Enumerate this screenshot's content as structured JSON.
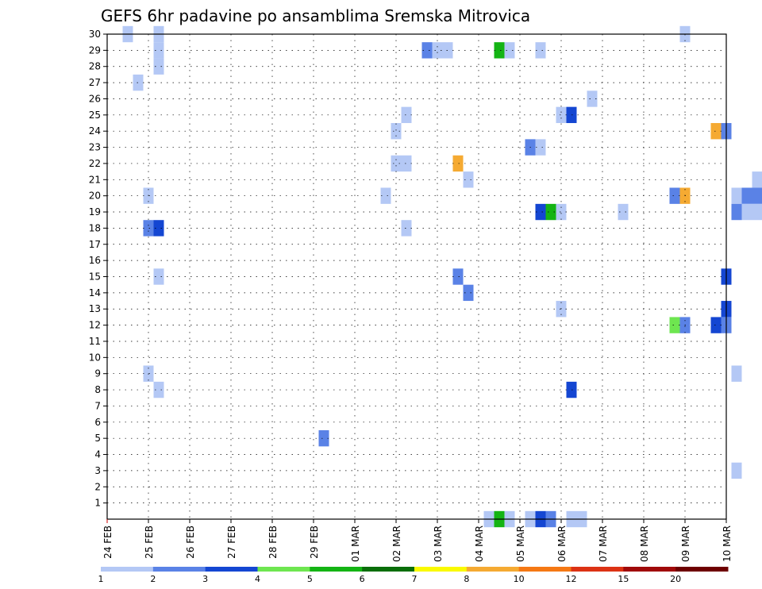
{
  "chart_data": {
    "type": "heatmap",
    "title": "GEFS 6hr padavine po ansamblima Sremska Mitrovica",
    "xlabel": "",
    "ylabel": "",
    "x_ticks": [
      "24 FEB",
      "25 FEB",
      "26 FEB",
      "27 FEB",
      "28 FEB",
      "29 FEB",
      "01 MAR",
      "02 MAR",
      "03 MAR",
      "04 MAR",
      "05 MAR",
      "06 MAR",
      "07 MAR",
      "08 MAR",
      "09 MAR",
      "10 MAR"
    ],
    "y_ticks": [
      "1",
      "2",
      "3",
      "4",
      "5",
      "6",
      "7",
      "8",
      "9",
      "10",
      "11",
      "12",
      "13",
      "14",
      "15",
      "16",
      "17",
      "18",
      "19",
      "20",
      "21",
      "22",
      "23",
      "24",
      "25",
      "26",
      "27",
      "28",
      "29",
      "30"
    ],
    "ylim": [
      0,
      30
    ],
    "grid": true,
    "colorbar": {
      "tick_labels": [
        "1",
        "2",
        "3",
        "4",
        "5",
        "6",
        "7",
        "8",
        "10",
        "12",
        "15",
        "20"
      ],
      "colors": [
        "#b4c8f5",
        "#5a82e6",
        "#1446d2",
        "#6ee650",
        "#14b414",
        "#0a6e0a",
        "#fafa00",
        "#f5aa32",
        "#f57814",
        "#dc3214",
        "#a00a0a",
        "#6e0000"
      ]
    },
    "cells": [
      {
        "day": 1.25,
        "member": 30,
        "bin": 0
      },
      {
        "day": 1.25,
        "member": 29,
        "bin": 0
      },
      {
        "day": 1.25,
        "member": 28,
        "bin": 0
      },
      {
        "day": 0.75,
        "member": 27,
        "bin": 0
      },
      {
        "day": 0.5,
        "member": 30,
        "bin": 0
      },
      {
        "day": 7.75,
        "member": 29,
        "bin": 1
      },
      {
        "day": 8.0,
        "member": 29,
        "bin": 0
      },
      {
        "day": 8.25,
        "member": 29,
        "bin": 0
      },
      {
        "day": 9.5,
        "member": 29,
        "bin": 4
      },
      {
        "day": 9.75,
        "member": 29,
        "bin": 0
      },
      {
        "day": 10.5,
        "member": 29,
        "bin": 0
      },
      {
        "day": 14.0,
        "member": 30,
        "bin": 0
      },
      {
        "day": 11.75,
        "member": 26,
        "bin": 0
      },
      {
        "day": 7.25,
        "member": 25,
        "bin": 0
      },
      {
        "day": 11.0,
        "member": 25,
        "bin": 0
      },
      {
        "day": 11.25,
        "member": 25,
        "bin": 2
      },
      {
        "day": 7.0,
        "member": 24,
        "bin": 0
      },
      {
        "day": 14.75,
        "member": 24,
        "bin": 7
      },
      {
        "day": 15.0,
        "member": 24,
        "bin": 1
      },
      {
        "day": 10.25,
        "member": 23,
        "bin": 1
      },
      {
        "day": 10.5,
        "member": 23,
        "bin": 0
      },
      {
        "day": 7.0,
        "member": 22,
        "bin": 0
      },
      {
        "day": 7.25,
        "member": 22,
        "bin": 0
      },
      {
        "day": 8.5,
        "member": 22,
        "bin": 7
      },
      {
        "day": 8.75,
        "member": 21,
        "bin": 0
      },
      {
        "day": 15.75,
        "member": 21,
        "bin": 0
      },
      {
        "day": 1.0,
        "member": 20,
        "bin": 0
      },
      {
        "day": 6.75,
        "member": 20,
        "bin": 0
      },
      {
        "day": 13.75,
        "member": 20,
        "bin": 1
      },
      {
        "day": 14.0,
        "member": 20,
        "bin": 7
      },
      {
        "day": 15.25,
        "member": 20,
        "bin": 0
      },
      {
        "day": 15.5,
        "member": 20,
        "bin": 1
      },
      {
        "day": 15.75,
        "member": 20,
        "bin": 1
      },
      {
        "day": 10.5,
        "member": 19,
        "bin": 2
      },
      {
        "day": 10.75,
        "member": 19,
        "bin": 4
      },
      {
        "day": 11.0,
        "member": 19,
        "bin": 0
      },
      {
        "day": 12.5,
        "member": 19,
        "bin": 0
      },
      {
        "day": 15.25,
        "member": 19,
        "bin": 1
      },
      {
        "day": 15.5,
        "member": 19,
        "bin": 0
      },
      {
        "day": 15.75,
        "member": 19,
        "bin": 0
      },
      {
        "day": 1.0,
        "member": 18,
        "bin": 1
      },
      {
        "day": 1.25,
        "member": 18,
        "bin": 2
      },
      {
        "day": 7.25,
        "member": 18,
        "bin": 0
      },
      {
        "day": 1.25,
        "member": 15,
        "bin": 0
      },
      {
        "day": 8.5,
        "member": 15,
        "bin": 1
      },
      {
        "day": 15.0,
        "member": 15,
        "bin": 2
      },
      {
        "day": 8.75,
        "member": 14,
        "bin": 1
      },
      {
        "day": 11.0,
        "member": 13,
        "bin": 0
      },
      {
        "day": 15.0,
        "member": 13,
        "bin": 2
      },
      {
        "day": 13.75,
        "member": 12,
        "bin": 3
      },
      {
        "day": 14.0,
        "member": 12,
        "bin": 1
      },
      {
        "day": 14.75,
        "member": 12,
        "bin": 2
      },
      {
        "day": 15.0,
        "member": 12,
        "bin": 1
      },
      {
        "day": 1.0,
        "member": 9,
        "bin": 0
      },
      {
        "day": 15.25,
        "member": 9,
        "bin": 0
      },
      {
        "day": 1.25,
        "member": 8,
        "bin": 0
      },
      {
        "day": 11.25,
        "member": 8,
        "bin": 2
      },
      {
        "day": 5.25,
        "member": 5,
        "bin": 1
      },
      {
        "day": 15.25,
        "member": 3,
        "bin": 0
      },
      {
        "day": 9.25,
        "member": 0,
        "bin": 0
      },
      {
        "day": 9.5,
        "member": 0,
        "bin": 4
      },
      {
        "day": 9.75,
        "member": 0,
        "bin": 0
      },
      {
        "day": 10.25,
        "member": 0,
        "bin": 0
      },
      {
        "day": 10.5,
        "member": 0,
        "bin": 2
      },
      {
        "day": 10.75,
        "member": 0,
        "bin": 1
      },
      {
        "day": 11.25,
        "member": 0,
        "bin": 0
      },
      {
        "day": 11.5,
        "member": 0,
        "bin": 0
      }
    ]
  }
}
